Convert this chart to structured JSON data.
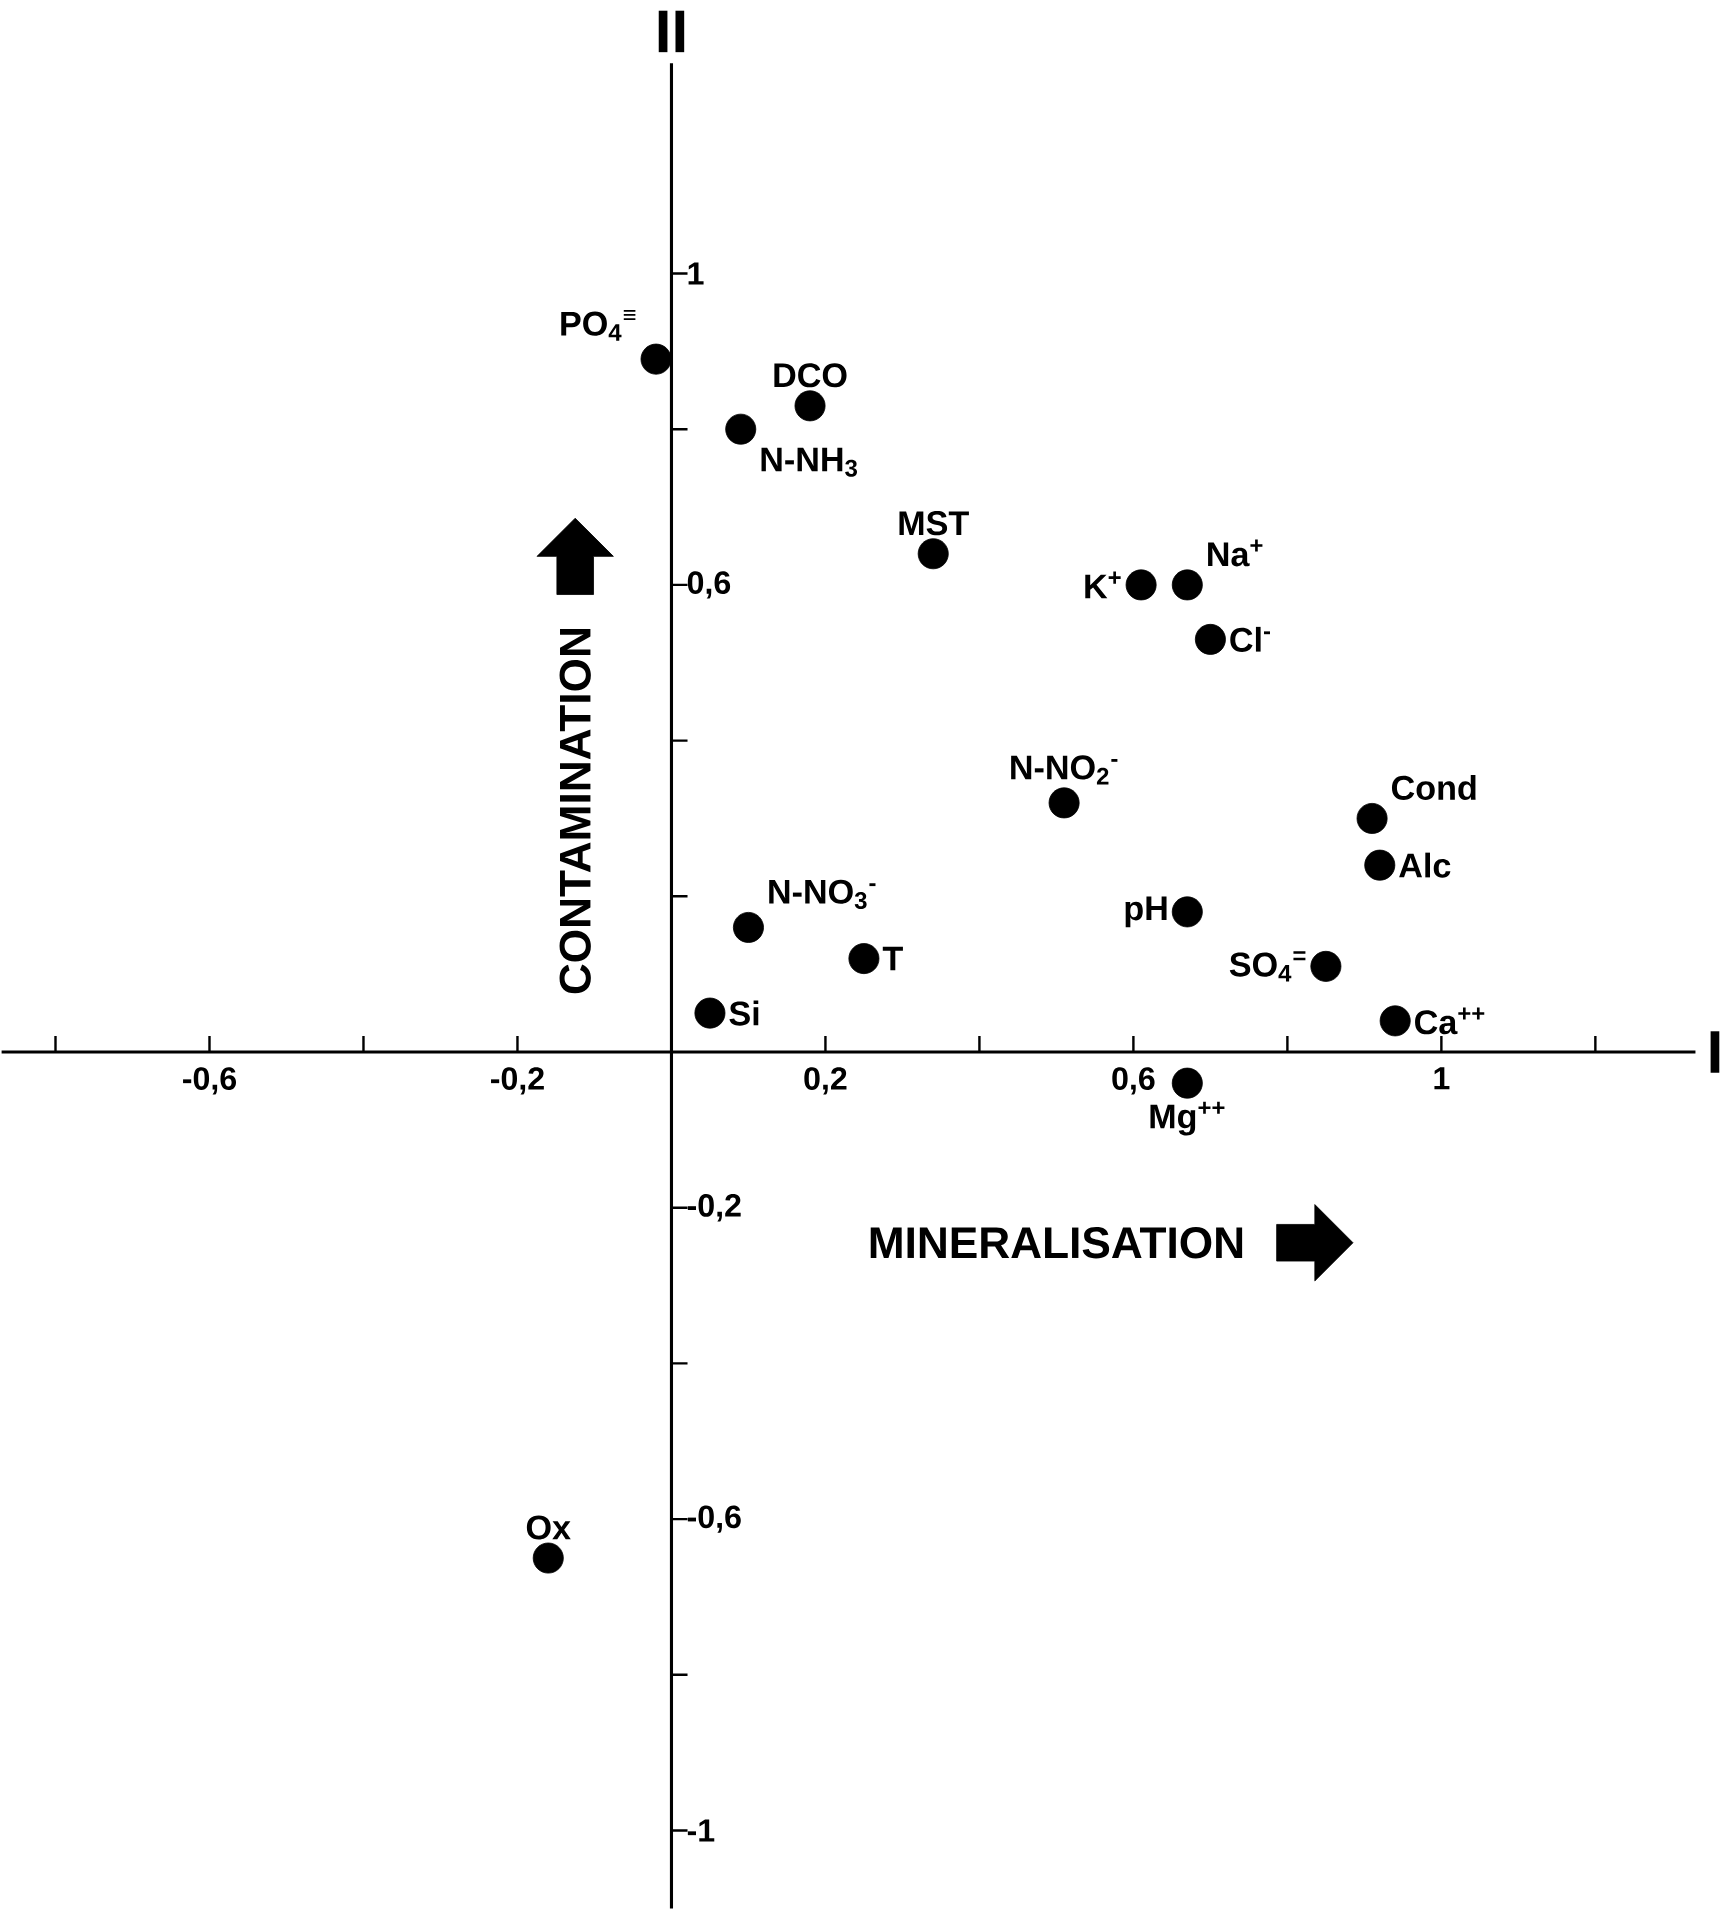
{
  "chart_data": {
    "type": "scatter",
    "xlabel": "I",
    "ylabel": "II",
    "marker": "circle",
    "xlim": [
      -0.87,
      1.33
    ],
    "ylim": [
      -1.1,
      1.27
    ],
    "xticks": [
      {
        "value": -0.8,
        "label": null
      },
      {
        "value": -0.6,
        "label": "-0,6"
      },
      {
        "value": -0.4,
        "label": null
      },
      {
        "value": -0.2,
        "label": "-0,2"
      },
      {
        "value": 0.2,
        "label": "0,2"
      },
      {
        "value": 0.4,
        "label": null
      },
      {
        "value": 0.6,
        "label": "0,6"
      },
      {
        "value": 0.8,
        "label": null
      },
      {
        "value": 1,
        "label": "1"
      },
      {
        "value": 1.2,
        "label": null
      }
    ],
    "yticks": [
      {
        "value": -1,
        "label": "-1"
      },
      {
        "value": -0.8,
        "label": null
      },
      {
        "value": -0.6,
        "label": "-0,6"
      },
      {
        "value": -0.4,
        "label": null
      },
      {
        "value": -0.2,
        "label": "-0,2"
      },
      {
        "value": 0.2,
        "label": null
      },
      {
        "value": 0.4,
        "label": null
      },
      {
        "value": 0.6,
        "label": "0,6"
      },
      {
        "value": 0.8,
        "label": null
      },
      {
        "value": 1,
        "label": "1"
      }
    ],
    "series": [
      {
        "color": "#000000",
        "x": [
          -0.02,
          0.09,
          0.18,
          0.34,
          0.61,
          0.67,
          0.7,
          0.51,
          0.91,
          0.92,
          0.67,
          0.1,
          0.25,
          0.85,
          0.94,
          0.05,
          0.67,
          -0.16
        ],
        "values": [
          0.89,
          0.8,
          0.83,
          0.64,
          0.6,
          0.6,
          0.53,
          0.32,
          0.3,
          0.24,
          0.18,
          0.16,
          0.12,
          0.11,
          0.04,
          0.05,
          -0.04,
          -0.65
        ]
      }
    ],
    "annotations": [
      {
        "text": "PO$_{4}$$^{≡}$",
        "x": -0.02,
        "y": 0.89
      },
      {
        "text": "N-NH$_{3}$",
        "x": 0.09,
        "y": 0.8
      },
      {
        "text": "DCO",
        "x": 0.18,
        "y": 0.83
      },
      {
        "text": "MST",
        "x": 0.34,
        "y": 0.64
      },
      {
        "text": "K$^{+}$",
        "x": 0.61,
        "y": 0.6
      },
      {
        "text": "Na$^{+}$",
        "x": 0.67,
        "y": 0.6
      },
      {
        "text": "Cl$^{-}$",
        "x": 0.7,
        "y": 0.53
      },
      {
        "text": "N-NO$_{2}$$^{-}$",
        "x": 0.51,
        "y": 0.32
      },
      {
        "text": "Cond",
        "x": 0.91,
        "y": 0.3
      },
      {
        "text": "Alc",
        "x": 0.92,
        "y": 0.24
      },
      {
        "text": "pH",
        "x": 0.67,
        "y": 0.18
      },
      {
        "text": "N-NO$_{3}$$^{-}$",
        "x": 0.1,
        "y": 0.16
      },
      {
        "text": "T",
        "x": 0.25,
        "y": 0.12
      },
      {
        "text": "SO$_{4}$$^{=}$",
        "x": 0.85,
        "y": 0.11
      },
      {
        "text": "Ca$^{++}$",
        "x": 0.94,
        "y": 0.04
      },
      {
        "text": "Si",
        "x": 0.05,
        "y": 0.05
      },
      {
        "text": "Mg$^{++}$",
        "x": 0.67,
        "y": -0.04
      },
      {
        "text": "Ox",
        "x": -0.16,
        "y": -0.65
      },
      "CONTAMINATION",
      "MINERALISATION"
    ]
  }
}
